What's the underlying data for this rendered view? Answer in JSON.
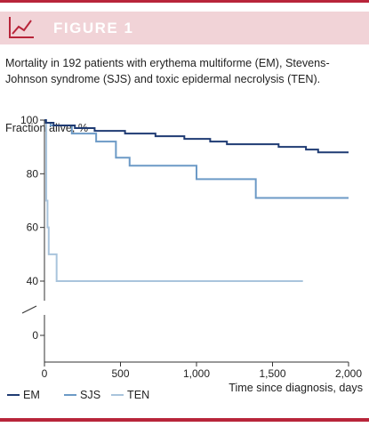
{
  "figure_label": "FIGURE 1",
  "caption": "Mortality in 192 patients with erythema multiforme (EM), Stevens-Johnson syndrome (SJS) and toxic epidermal necrolysis (TEN).",
  "colors": {
    "accent": "#b8253a",
    "banner_bg": "#f1d3d7"
  },
  "chart_data": {
    "type": "line",
    "ylabel": "Fraction alive, %",
    "xlabel": "Time since diagnosis, days",
    "xlim": [
      0,
      2000
    ],
    "ylim": [
      40,
      100
    ],
    "y_axis_break": true,
    "x_ticks": [
      0,
      500,
      1000,
      1500,
      2000
    ],
    "x_tick_labels": [
      "0",
      "500",
      "1,000",
      "1,500",
      "2,000"
    ],
    "y_ticks": [
      100,
      80,
      60,
      40,
      0
    ],
    "y_tick_labels": [
      "100",
      "80",
      "60",
      "40",
      "0"
    ],
    "legend": {
      "position": "bottom-left"
    },
    "series": [
      {
        "name": "EM",
        "color": "#1f3b73",
        "step": true,
        "x": [
          0,
          10,
          60,
          200,
          330,
          530,
          730,
          920,
          1090,
          1200,
          1540,
          1720,
          1800,
          2000
        ],
        "y": [
          100,
          99,
          98,
          97,
          96,
          95,
          94,
          93,
          92,
          91,
          90,
          89,
          88,
          88
        ]
      },
      {
        "name": "SJS",
        "color": "#6c9ac6",
        "step": true,
        "x": [
          0,
          10,
          40,
          180,
          340,
          470,
          560,
          1000,
          1390,
          2000
        ],
        "y": [
          100,
          99,
          98,
          95,
          92,
          86,
          83,
          78,
          71,
          71
        ]
      },
      {
        "name": "TEN",
        "color": "#a9c4dc",
        "step": true,
        "x": [
          0,
          12,
          20,
          28,
          40,
          80,
          1700
        ],
        "y": [
          100,
          70,
          60,
          50,
          50,
          40,
          40
        ]
      }
    ]
  }
}
